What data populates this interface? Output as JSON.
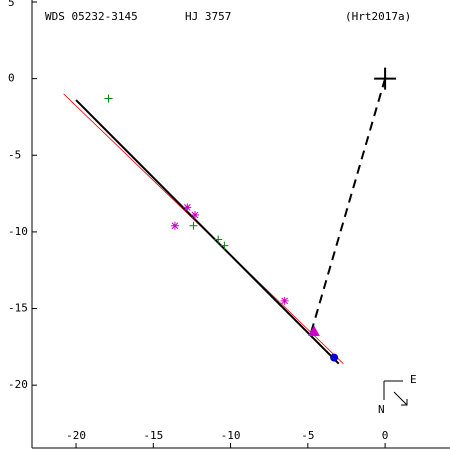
{
  "chart_data": {
    "type": "scatter",
    "annotations": [
      "WDS 05232-3145",
      "HJ 3757",
      "(Hrt2017a)"
    ],
    "compass": [
      "E",
      "N"
    ],
    "xlim": [
      -22.85,
      4.2
    ],
    "ylim": [
      -24.1,
      5.13
    ],
    "xticks": [
      -20,
      -15,
      -10,
      -5,
      0
    ],
    "yticks": [
      5,
      0,
      -5,
      -10,
      -15,
      -20
    ],
    "lines": [
      {
        "color": "#ff0000",
        "width": 0.8,
        "dash": false,
        "x": [
          -20.8,
          -2.7
        ],
        "y": [
          -1.0,
          -18.6
        ]
      },
      {
        "color": "#000000",
        "width": 2,
        "dash": false,
        "x": [
          -20.0,
          -3.0
        ],
        "y": [
          -1.4,
          -18.6
        ]
      },
      {
        "color": "#000000",
        "width": 2,
        "dash": true,
        "x": [
          0,
          -4.8
        ],
        "y": [
          0,
          -16.6
        ]
      }
    ],
    "series": [
      {
        "marker": "plus",
        "color": "#008800",
        "x": [
          -17.9,
          -12.4,
          -10.8,
          -10.4
        ],
        "y": [
          -1.3,
          -9.6,
          -10.5,
          -10.9
        ]
      },
      {
        "marker": "star",
        "color": "#cc00cc",
        "x": [
          -13.6,
          -12.8,
          -12.3,
          -6.5
        ],
        "y": [
          -9.6,
          -8.4,
          -8.9,
          -14.5
        ]
      },
      {
        "marker": "triangle",
        "color": "#cc00cc",
        "x": [
          -4.6
        ],
        "y": [
          -16.5
        ]
      },
      {
        "marker": "dot",
        "color": "#0000cc",
        "x": [
          -3.3
        ],
        "y": [
          -18.2
        ]
      },
      {
        "marker": "cross",
        "color": "#000000",
        "x": [
          0
        ],
        "y": [
          0
        ]
      }
    ]
  }
}
